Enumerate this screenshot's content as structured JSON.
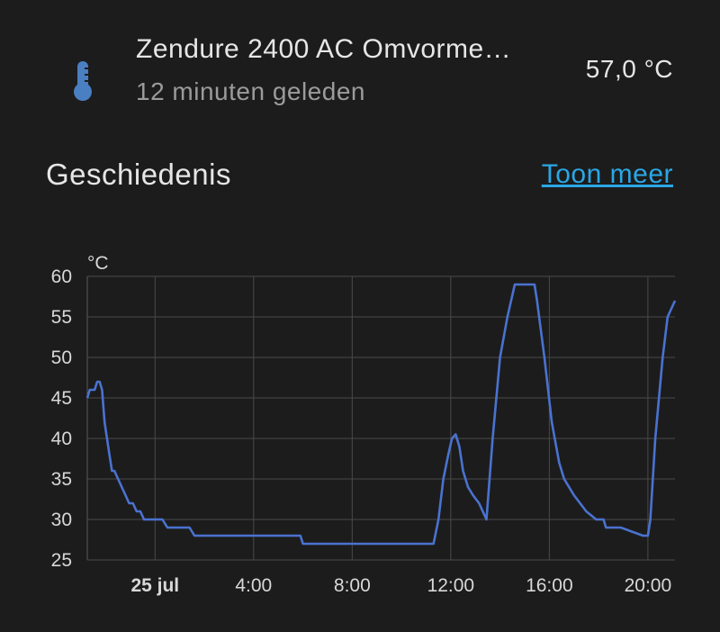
{
  "entity": {
    "name": "Zendure 2400 AC Omvorme…",
    "last_changed": "12 minuten geleden",
    "state": "57,0 °C",
    "icon": "thermometer-icon",
    "icon_color": "#4a7fc1"
  },
  "history": {
    "title": "Geschiedenis",
    "show_more": "Toon meer",
    "link_color": "#2aa7e6"
  },
  "chart_data": {
    "type": "line",
    "ylabel": "°C",
    "ylim": [
      25,
      60
    ],
    "yticks": [
      25,
      30,
      35,
      40,
      45,
      50,
      55,
      60
    ],
    "xlim": [
      -2.75,
      21.1
    ],
    "xticks": [
      {
        "value": 0,
        "label": "25 jul",
        "bold": true
      },
      {
        "value": 4,
        "label": "4:00",
        "bold": false
      },
      {
        "value": 8,
        "label": "8:00",
        "bold": false
      },
      {
        "value": 12,
        "label": "12:00",
        "bold": false
      },
      {
        "value": 16,
        "label": "16:00",
        "bold": false
      },
      {
        "value": 20,
        "label": "20:00",
        "bold": false
      }
    ],
    "grid": true,
    "series": [
      {
        "color": "#4a72d0",
        "x": [
          -2.75,
          -2.65,
          -2.55,
          -2.45,
          -2.35,
          -2.25,
          -2.15,
          -2.05,
          -1.95,
          -1.85,
          -1.75,
          -1.65,
          -1.5,
          -1.35,
          -1.2,
          -1.05,
          -0.9,
          -0.75,
          -0.6,
          -0.45,
          -0.3,
          -0.15,
          0.3,
          0.5,
          0.6,
          1.0,
          1.1,
          1.4,
          1.6,
          2.0,
          2.7,
          5.0,
          5.9,
          6.0,
          11.3,
          11.5,
          11.7,
          11.9,
          12.05,
          12.2,
          12.35,
          12.5,
          12.7,
          12.9,
          13.15,
          13.45,
          13.5,
          13.7,
          14.0,
          14.3,
          14.6,
          14.8,
          15.0,
          15.4,
          15.5,
          15.8,
          16.1,
          16.4,
          16.6,
          17.0,
          17.5,
          17.9,
          18.2,
          18.3,
          18.8,
          18.9,
          19.8,
          20.0,
          20.1,
          20.3,
          20.6,
          20.8,
          21.1
        ],
        "y": [
          45,
          46,
          46,
          46,
          47,
          47,
          46,
          42,
          40,
          38,
          36,
          36,
          35,
          34,
          33,
          32,
          32,
          31,
          31,
          30,
          30,
          30,
          30,
          29,
          29,
          29,
          29,
          29,
          28,
          28,
          28,
          28,
          28,
          27,
          27,
          30,
          35,
          38,
          40,
          40.5,
          39,
          36,
          34,
          33,
          32,
          30,
          32,
          40,
          50,
          55,
          59,
          59,
          59,
          59,
          57,
          50,
          42,
          37,
          35,
          33,
          31,
          30,
          30,
          29,
          29,
          29,
          28,
          28,
          30,
          40,
          50,
          55,
          57
        ]
      }
    ]
  }
}
